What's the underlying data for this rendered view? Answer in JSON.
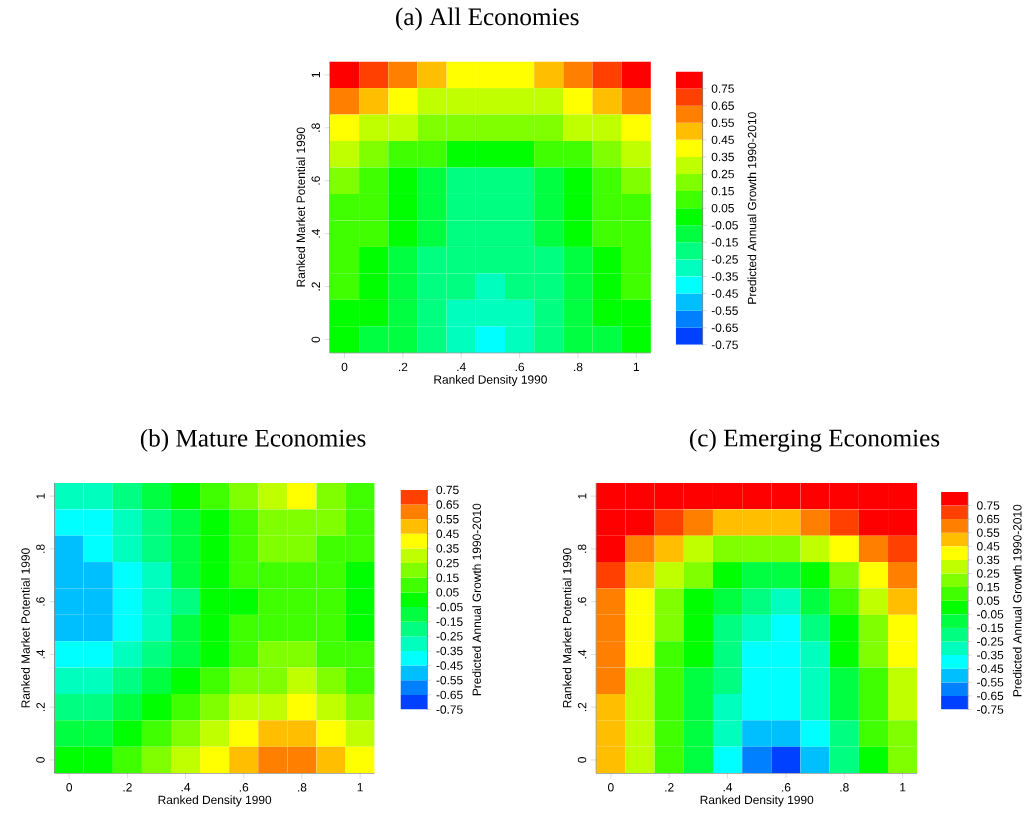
{
  "chart_data": [
    {
      "type": "heatmap",
      "title": "(a) All Economies",
      "xlabel": "Ranked Density 1990",
      "ylabel": "Ranked Market Potential 1990",
      "clabel": "Predicted Annual Growth 1990-2010",
      "categories": [
        "0",
        null,
        ".2",
        null,
        ".4",
        null,
        ".6",
        null,
        ".8",
        null,
        "1"
      ],
      "y_categories": [
        "1",
        null,
        ".8",
        null,
        ".6",
        null,
        ".4",
        null,
        ".2",
        null,
        "0"
      ],
      "cells": [
        [
          0.8,
          0.7,
          0.6,
          0.5,
          0.4,
          0.4,
          0.4,
          0.5,
          0.6,
          0.7,
          0.8
        ],
        [
          0.6,
          0.5,
          0.4,
          0.3,
          0.3,
          0.3,
          0.3,
          0.3,
          0.4,
          0.5,
          0.6
        ],
        [
          0.4,
          0.3,
          0.3,
          0.2,
          0.2,
          0.2,
          0.2,
          0.2,
          0.3,
          0.3,
          0.4
        ],
        [
          0.3,
          0.2,
          0.1,
          0.1,
          0.0,
          0.0,
          0.0,
          0.1,
          0.1,
          0.2,
          0.3
        ],
        [
          0.2,
          0.1,
          0.0,
          -0.1,
          -0.2,
          -0.2,
          -0.2,
          -0.1,
          0.0,
          0.1,
          0.2
        ],
        [
          0.1,
          0.1,
          0.0,
          -0.1,
          -0.2,
          -0.2,
          -0.2,
          -0.1,
          0.0,
          0.1,
          0.1
        ],
        [
          0.1,
          0.1,
          0.0,
          -0.1,
          -0.2,
          -0.2,
          -0.2,
          -0.1,
          0.0,
          0.1,
          0.1
        ],
        [
          0.1,
          0.0,
          -0.1,
          -0.2,
          -0.2,
          -0.2,
          -0.2,
          -0.2,
          -0.1,
          0.0,
          0.1
        ],
        [
          0.1,
          0.0,
          -0.1,
          -0.2,
          -0.2,
          -0.3,
          -0.2,
          -0.2,
          -0.1,
          0.0,
          0.1
        ],
        [
          0.0,
          0.0,
          -0.1,
          -0.2,
          -0.3,
          -0.3,
          -0.3,
          -0.2,
          -0.1,
          0.0,
          0.0
        ],
        [
          0.0,
          -0.1,
          -0.1,
          -0.2,
          -0.3,
          -0.4,
          -0.3,
          -0.2,
          -0.1,
          -0.1,
          0.0
        ]
      ],
      "clim": [
        -0.75,
        0.85
      ],
      "cticks": [
        {
          "value": 0.75,
          "label": "0.75"
        },
        {
          "value": 0.65,
          "label": "0.65"
        },
        {
          "value": 0.55,
          "label": "0.55"
        },
        {
          "value": 0.45,
          "label": "0.45"
        },
        {
          "value": 0.35,
          "label": "0.35"
        },
        {
          "value": 0.25,
          "label": "0.25"
        },
        {
          "value": 0.15,
          "label": "0.15"
        },
        {
          "value": 0.05,
          "label": "0.05"
        },
        {
          "value": -0.05,
          "label": "-0.05"
        },
        {
          "value": -0.15,
          "label": "-0.15"
        },
        {
          "value": -0.25,
          "label": "-0.25"
        },
        {
          "value": -0.35,
          "label": "-0.35"
        },
        {
          "value": -0.45,
          "label": "-0.45"
        },
        {
          "value": -0.55,
          "label": "-0.55"
        },
        {
          "value": -0.65,
          "label": "-0.65"
        },
        {
          "value": -0.75,
          "label": "-0.75"
        }
      ]
    },
    {
      "type": "heatmap",
      "title": "(b) Mature Economies",
      "xlabel": "Ranked Density 1990",
      "ylabel": "Ranked Market Potential 1990",
      "clabel": "Predicted Annual Growth 1990-2010",
      "categories": [
        "0",
        null,
        ".2",
        null,
        ".4",
        null,
        ".6",
        null,
        ".8",
        null,
        "1"
      ],
      "y_categories": [
        "1",
        null,
        ".8",
        null,
        ".6",
        null,
        ".4",
        null,
        ".2",
        null,
        "0"
      ],
      "cells": [
        [
          -0.3,
          -0.3,
          -0.2,
          -0.1,
          0.0,
          0.1,
          0.2,
          0.3,
          0.4,
          0.2,
          0.1
        ],
        [
          -0.4,
          -0.4,
          -0.3,
          -0.2,
          -0.1,
          0.0,
          0.1,
          0.2,
          0.2,
          0.2,
          0.1
        ],
        [
          -0.5,
          -0.4,
          -0.3,
          -0.2,
          -0.1,
          0.0,
          0.1,
          0.2,
          0.2,
          0.1,
          0.1
        ],
        [
          -0.5,
          -0.5,
          -0.4,
          -0.3,
          -0.1,
          0.0,
          0.1,
          0.1,
          0.1,
          0.1,
          0.0
        ],
        [
          -0.5,
          -0.5,
          -0.4,
          -0.3,
          -0.2,
          0.0,
          0.0,
          0.1,
          0.1,
          0.1,
          0.0
        ],
        [
          -0.5,
          -0.5,
          -0.4,
          -0.3,
          -0.1,
          0.0,
          0.1,
          0.1,
          0.1,
          0.1,
          0.0
        ],
        [
          -0.4,
          -0.4,
          -0.3,
          -0.2,
          -0.1,
          0.0,
          0.1,
          0.2,
          0.2,
          0.1,
          0.1
        ],
        [
          -0.3,
          -0.3,
          -0.2,
          -0.1,
          0.0,
          0.1,
          0.2,
          0.2,
          0.3,
          0.2,
          0.1
        ],
        [
          -0.2,
          -0.2,
          -0.1,
          0.0,
          0.1,
          0.2,
          0.3,
          0.3,
          0.4,
          0.3,
          0.2
        ],
        [
          -0.1,
          -0.1,
          0.0,
          0.1,
          0.2,
          0.3,
          0.4,
          0.5,
          0.5,
          0.4,
          0.3
        ],
        [
          0.0,
          0.0,
          0.1,
          0.2,
          0.3,
          0.4,
          0.5,
          0.6,
          0.6,
          0.5,
          0.4
        ]
      ],
      "clim": [
        -0.75,
        0.75
      ],
      "cticks": [
        {
          "value": 0.75,
          "label": "0.75"
        },
        {
          "value": 0.65,
          "label": "0.65"
        },
        {
          "value": 0.55,
          "label": "0.55"
        },
        {
          "value": 0.45,
          "label": "0.45"
        },
        {
          "value": 0.35,
          "label": "0.35"
        },
        {
          "value": 0.25,
          "label": "0.25"
        },
        {
          "value": 0.15,
          "label": "0.15"
        },
        {
          "value": 0.05,
          "label": "0.05"
        },
        {
          "value": -0.05,
          "label": "-0.05"
        },
        {
          "value": -0.15,
          "label": "-0.15"
        },
        {
          "value": -0.25,
          "label": "-0.25"
        },
        {
          "value": -0.35,
          "label": "-0.35"
        },
        {
          "value": -0.45,
          "label": "-0.45"
        },
        {
          "value": -0.55,
          "label": "-0.55"
        },
        {
          "value": -0.65,
          "label": "-0.65"
        },
        {
          "value": -0.75,
          "label": "-0.75"
        }
      ]
    },
    {
      "type": "heatmap",
      "title": "(c) Emerging Economies",
      "xlabel": "Ranked Density 1990",
      "ylabel": "Ranked Market Potential 1990",
      "clabel": "Predicted Annual Growth 1990-2010",
      "categories": [
        "0",
        null,
        ".2",
        null,
        ".4",
        null,
        ".6",
        null,
        ".8",
        null,
        "1"
      ],
      "y_categories": [
        "1",
        null,
        ".8",
        null,
        ".6",
        null,
        ".4",
        null,
        ".2",
        null,
        "0"
      ],
      "cells": [
        [
          0.8,
          0.8,
          0.8,
          0.8,
          0.8,
          0.8,
          0.8,
          0.8,
          0.8,
          0.8,
          0.8
        ],
        [
          0.8,
          0.8,
          0.7,
          0.6,
          0.5,
          0.5,
          0.5,
          0.6,
          0.7,
          0.8,
          0.8
        ],
        [
          0.8,
          0.6,
          0.5,
          0.3,
          0.2,
          0.2,
          0.2,
          0.3,
          0.4,
          0.6,
          0.7
        ],
        [
          0.7,
          0.5,
          0.3,
          0.2,
          0.0,
          -0.1,
          -0.1,
          0.0,
          0.2,
          0.4,
          0.6
        ],
        [
          0.6,
          0.4,
          0.2,
          0.0,
          -0.1,
          -0.2,
          -0.3,
          -0.1,
          0.1,
          0.3,
          0.5
        ],
        [
          0.6,
          0.4,
          0.2,
          0.0,
          -0.2,
          -0.3,
          -0.4,
          -0.2,
          0.0,
          0.2,
          0.4
        ],
        [
          0.6,
          0.4,
          0.1,
          0.0,
          -0.2,
          -0.4,
          -0.4,
          -0.3,
          0.0,
          0.2,
          0.4
        ],
        [
          0.6,
          0.3,
          0.1,
          -0.1,
          -0.2,
          -0.4,
          -0.4,
          -0.3,
          -0.1,
          0.1,
          0.3
        ],
        [
          0.5,
          0.3,
          0.1,
          -0.1,
          -0.3,
          -0.4,
          -0.4,
          -0.3,
          -0.1,
          0.1,
          0.3
        ],
        [
          0.5,
          0.3,
          0.1,
          -0.1,
          -0.3,
          -0.5,
          -0.5,
          -0.4,
          -0.2,
          0.1,
          0.2
        ],
        [
          0.5,
          0.3,
          0.1,
          -0.1,
          -0.4,
          -0.6,
          -0.7,
          -0.5,
          -0.2,
          0.0,
          0.2
        ]
      ],
      "clim": [
        -0.75,
        0.85
      ],
      "cticks": [
        {
          "value": 0.75,
          "label": "0.75"
        },
        {
          "value": 0.65,
          "label": "0.65"
        },
        {
          "value": 0.55,
          "label": "0.55"
        },
        {
          "value": 0.45,
          "label": "0.45"
        },
        {
          "value": 0.35,
          "label": "0.35"
        },
        {
          "value": 0.25,
          "label": "0.25"
        },
        {
          "value": 0.15,
          "label": "0.15"
        },
        {
          "value": 0.05,
          "label": "0.05"
        },
        {
          "value": -0.05,
          "label": "-0.05"
        },
        {
          "value": -0.15,
          "label": "-0.15"
        },
        {
          "value": -0.25,
          "label": "-0.25"
        },
        {
          "value": -0.35,
          "label": "-0.35"
        },
        {
          "value": -0.45,
          "label": "-0.45"
        },
        {
          "value": -0.55,
          "label": "-0.55"
        },
        {
          "value": -0.65,
          "label": "-0.65"
        },
        {
          "value": -0.75,
          "label": "-0.75"
        }
      ]
    }
  ]
}
